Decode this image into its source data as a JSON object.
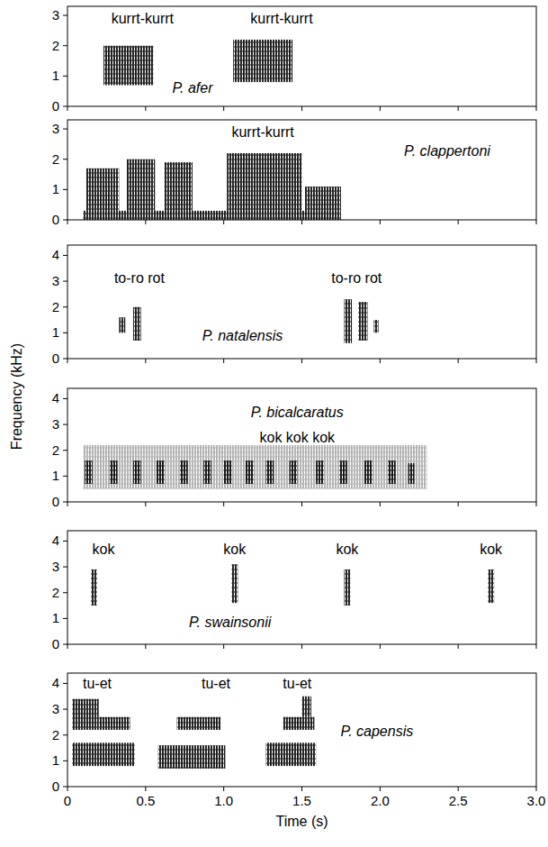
{
  "chart_data": [
    {
      "type": "spectrogram",
      "color": "#000000",
      "xlim": [
        0,
        3
      ],
      "ylim": [
        0,
        3.3
      ],
      "xticks": [
        0,
        0.5,
        1,
        1.5,
        2,
        2.5,
        3
      ],
      "yticks": [
        0,
        1,
        2,
        3
      ],
      "tick_labels": "y",
      "species": {
        "text": "P. afer",
        "x": 0.8,
        "y": 0.45
      },
      "annotations": [
        {
          "text": "kurrt-kurrt",
          "x": 0.48,
          "y": 2.75
        },
        {
          "text": "kurrt-kurrt",
          "x": 1.37,
          "y": 2.75
        }
      ],
      "notes": [
        {
          "start": 0.23,
          "end": 0.55,
          "low": 0.7,
          "high": 2.0
        },
        {
          "start": 1.06,
          "end": 1.44,
          "low": 0.8,
          "high": 2.2
        }
      ]
    },
    {
      "type": "spectrogram",
      "color": "#000000",
      "xlim": [
        0,
        3
      ],
      "ylim": [
        0,
        3.3
      ],
      "xticks": [
        0,
        0.5,
        1,
        1.5,
        2,
        2.5,
        3
      ],
      "yticks": [
        0,
        1,
        2,
        3
      ],
      "tick_labels": "y",
      "species": {
        "text": "P. clappertoni",
        "x": 2.43,
        "y": 2.1
      },
      "annotations": [
        {
          "text": "kurrt-kurrt",
          "x": 1.25,
          "y": 2.75
        }
      ],
      "notes": [
        {
          "start": 0.1,
          "end": 1.75,
          "low": 0,
          "high": 0.3
        },
        {
          "start": 0.12,
          "end": 0.33,
          "low": 0.3,
          "high": 1.7
        },
        {
          "start": 0.38,
          "end": 0.56,
          "low": 0.3,
          "high": 2.0
        },
        {
          "start": 0.62,
          "end": 0.8,
          "low": 0.3,
          "high": 1.9
        },
        {
          "start": 1.02,
          "end": 1.5,
          "low": 0.3,
          "high": 2.2
        },
        {
          "start": 1.52,
          "end": 1.75,
          "low": 0.3,
          "high": 1.1
        }
      ]
    },
    {
      "type": "spectrogram",
      "color": "#000000",
      "xlim": [
        0,
        3
      ],
      "ylim": [
        0,
        4.4
      ],
      "xticks": [
        0,
        0.5,
        1,
        1.5,
        2,
        2.5,
        3
      ],
      "yticks": [
        0,
        1,
        2,
        3,
        4
      ],
      "tick_labels": "y",
      "ylabel": "Frequency (kHz)",
      "species": {
        "text": "P. natalensis",
        "x": 1.12,
        "y": 0.7
      },
      "annotations": [
        {
          "text": "to-ro rot",
          "x": 0.46,
          "y": 2.95
        },
        {
          "text": "to-ro rot",
          "x": 1.85,
          "y": 2.95
        }
      ],
      "notes": [
        {
          "start": 0.33,
          "end": 0.37,
          "low": 1.0,
          "high": 1.6
        },
        {
          "start": 0.42,
          "end": 0.47,
          "low": 0.7,
          "high": 2.0
        },
        {
          "start": 1.77,
          "end": 1.82,
          "low": 0.6,
          "high": 2.3
        },
        {
          "start": 1.86,
          "end": 1.92,
          "low": 0.7,
          "high": 2.2
        },
        {
          "start": 1.96,
          "end": 1.99,
          "low": 1.0,
          "high": 1.5
        }
      ]
    },
    {
      "type": "spectrogram",
      "color": "#000000",
      "xlim": [
        0,
        3
      ],
      "ylim": [
        0,
        4.4
      ],
      "xticks": [
        0,
        0.5,
        1,
        1.5,
        2,
        2.5,
        3
      ],
      "yticks": [
        0,
        1,
        2,
        3,
        4
      ],
      "tick_labels": "y",
      "species": {
        "text": "P. bicalcaratus",
        "x": 1.47,
        "y": 3.3
      },
      "annotations": [
        {
          "text": "kok kok kok",
          "x": 1.47,
          "y": 2.3
        }
      ],
      "faint_notes": [
        {
          "start": 0.1,
          "end": 2.3,
          "low": 0.5,
          "high": 2.2
        }
      ],
      "notes": [
        {
          "start": 0.11,
          "end": 0.16,
          "low": 0.7,
          "high": 1.6
        },
        {
          "start": 0.27,
          "end": 0.32,
          "low": 0.7,
          "high": 1.6
        },
        {
          "start": 0.42,
          "end": 0.47,
          "low": 0.7,
          "high": 1.6
        },
        {
          "start": 0.57,
          "end": 0.62,
          "low": 0.7,
          "high": 1.6
        },
        {
          "start": 0.72,
          "end": 0.77,
          "low": 0.7,
          "high": 1.6
        },
        {
          "start": 0.87,
          "end": 0.92,
          "low": 0.7,
          "high": 1.6
        },
        {
          "start": 1.0,
          "end": 1.05,
          "low": 0.7,
          "high": 1.6
        },
        {
          "start": 1.14,
          "end": 1.19,
          "low": 0.7,
          "high": 1.6
        },
        {
          "start": 1.27,
          "end": 1.32,
          "low": 0.7,
          "high": 1.6
        },
        {
          "start": 1.42,
          "end": 1.47,
          "low": 0.7,
          "high": 1.6
        },
        {
          "start": 1.59,
          "end": 1.64,
          "low": 0.7,
          "high": 1.6
        },
        {
          "start": 1.74,
          "end": 1.79,
          "low": 0.7,
          "high": 1.6
        },
        {
          "start": 1.9,
          "end": 1.95,
          "low": 0.7,
          "high": 1.6
        },
        {
          "start": 2.05,
          "end": 2.1,
          "low": 0.7,
          "high": 1.6
        },
        {
          "start": 2.18,
          "end": 2.22,
          "low": 0.7,
          "high": 1.5
        }
      ]
    },
    {
      "type": "spectrogram",
      "color": "#000000",
      "xlim": [
        0,
        3
      ],
      "ylim": [
        0,
        4.4
      ],
      "xticks": [
        0,
        0.5,
        1,
        1.5,
        2,
        2.5,
        3
      ],
      "yticks": [
        0,
        1,
        2,
        3,
        4
      ],
      "tick_labels": "y",
      "species": {
        "text": "P. swainsonii",
        "x": 1.04,
        "y": 0.65
      },
      "annotations": [
        {
          "text": "kok",
          "x": 0.23,
          "y": 3.5
        },
        {
          "text": "kok",
          "x": 1.07,
          "y": 3.5
        },
        {
          "text": "kok",
          "x": 1.79,
          "y": 3.5
        },
        {
          "text": "kok",
          "x": 2.71,
          "y": 3.5
        }
      ],
      "notes": [
        {
          "start": 0.15,
          "end": 0.19,
          "low": 1.5,
          "high": 2.9
        },
        {
          "start": 1.05,
          "end": 1.09,
          "low": 1.6,
          "high": 3.1
        },
        {
          "start": 1.77,
          "end": 1.81,
          "low": 1.5,
          "high": 2.9
        },
        {
          "start": 2.69,
          "end": 2.73,
          "low": 1.6,
          "high": 2.9
        }
      ]
    },
    {
      "type": "spectrogram",
      "color": "#000000",
      "xlim": [
        0,
        3
      ],
      "ylim": [
        0,
        4.4
      ],
      "xticks": [
        0,
        0.5,
        {
          "value": 1,
          "label": "1.0"
        },
        1.5,
        {
          "value": 2,
          "label": "2.0"
        },
        2.5,
        {
          "value": 3,
          "label": "3.0"
        }
      ],
      "yticks": [
        0,
        1,
        2,
        3,
        4
      ],
      "xlabel": "Time (s)",
      "species": {
        "text": "P. capensis",
        "x": 1.98,
        "y": 1.95
      },
      "annotations": [
        {
          "text": "tu-et",
          "x": 0.19,
          "y": 3.8
        },
        {
          "text": "tu-et",
          "x": 0.95,
          "y": 3.8
        },
        {
          "text": "tu-et",
          "x": 1.47,
          "y": 3.8
        }
      ],
      "notes": [
        {
          "start": 0.03,
          "end": 0.43,
          "low": 0.8,
          "high": 1.7
        },
        {
          "start": 0.03,
          "end": 0.2,
          "low": 2.2,
          "high": 3.4
        },
        {
          "start": 0.2,
          "end": 0.4,
          "low": 2.2,
          "high": 2.7
        },
        {
          "start": 0.58,
          "end": 1.01,
          "low": 0.7,
          "high": 1.6
        },
        {
          "start": 0.7,
          "end": 0.98,
          "low": 2.2,
          "high": 2.7
        },
        {
          "start": 1.27,
          "end": 1.59,
          "low": 0.8,
          "high": 1.7
        },
        {
          "start": 1.38,
          "end": 1.58,
          "low": 2.2,
          "high": 2.7
        },
        {
          "start": 1.5,
          "end": 1.56,
          "low": 2.7,
          "high": 3.5
        }
      ]
    }
  ]
}
